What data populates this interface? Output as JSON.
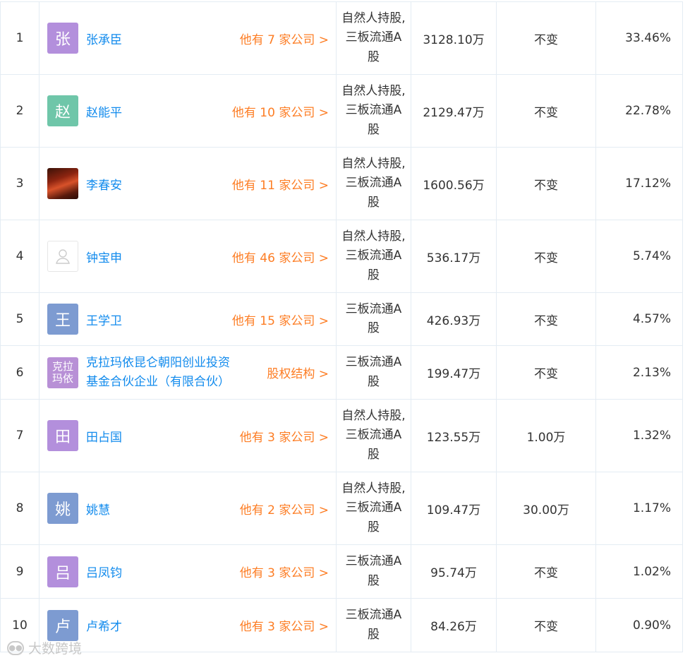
{
  "rows": [
    {
      "idx": "1",
      "avatar_text": "张",
      "avatar_color": "#b38fdc",
      "name": "张承臣",
      "link": "他有 7 家公司 >",
      "type": "自然人持股,三板流通A股",
      "amount": "3128.10万",
      "change": "不变",
      "percent": "33.46%"
    },
    {
      "idx": "2",
      "avatar_text": "赵",
      "avatar_color": "#6fc6a9",
      "name": "赵能平",
      "link": "他有 10 家公司 >",
      "type": "自然人持股,三板流通A股",
      "amount": "2129.47万",
      "change": "不变",
      "percent": "22.78%"
    },
    {
      "idx": "3",
      "avatar_text": "",
      "avatar_color": "",
      "name": "李春安",
      "link": "他有 11 家公司 >",
      "type": "自然人持股,三板流通A股",
      "amount": "1600.56万",
      "change": "不变",
      "percent": "17.12%"
    },
    {
      "idx": "4",
      "avatar_text": "",
      "avatar_color": "",
      "name": "钟宝申",
      "link": "他有 46 家公司 >",
      "type": "自然人持股,三板流通A股",
      "amount": "536.17万",
      "change": "不变",
      "percent": "5.74%"
    },
    {
      "idx": "5",
      "avatar_text": "王",
      "avatar_color": "#7d9bd1",
      "name": "王学卫",
      "link": "他有 15 家公司 >",
      "type": "三板流通A股",
      "amount": "426.93万",
      "change": "不变",
      "percent": "4.57%"
    },
    {
      "idx": "6",
      "avatar_text": "克拉玛依",
      "avatar_color": "#b890d6",
      "name": "克拉玛依昆仑朝阳创业投资基金合伙企业（有限合伙）",
      "link": "股权结构 >",
      "type": "三板流通A股",
      "amount": "199.47万",
      "change": "不变",
      "percent": "2.13%"
    },
    {
      "idx": "7",
      "avatar_text": "田",
      "avatar_color": "#b38fdc",
      "name": "田占国",
      "link": "他有 3 家公司 >",
      "type": "自然人持股,三板流通A股",
      "amount": "123.55万",
      "change": "1.00万",
      "percent": "1.32%"
    },
    {
      "idx": "8",
      "avatar_text": "姚",
      "avatar_color": "#7d9bd1",
      "name": "姚慧",
      "link": "他有 2 家公司 >",
      "type": "自然人持股,三板流通A股",
      "amount": "109.47万",
      "change": "30.00万",
      "percent": "1.17%"
    },
    {
      "idx": "9",
      "avatar_text": "吕",
      "avatar_color": "#b38fdc",
      "name": "吕凤钧",
      "link": "他有 3 家公司 >",
      "type": "三板流通A股",
      "amount": "95.74万",
      "change": "不变",
      "percent": "1.02%"
    },
    {
      "idx": "10",
      "avatar_text": "卢",
      "avatar_color": "#7d9bd1",
      "name": "卢希才",
      "link": "他有 3 家公司 >",
      "type": "三板流通A股",
      "amount": "84.26万",
      "change": "不变",
      "percent": "0.90%"
    }
  ],
  "watermark": "大数跨境"
}
